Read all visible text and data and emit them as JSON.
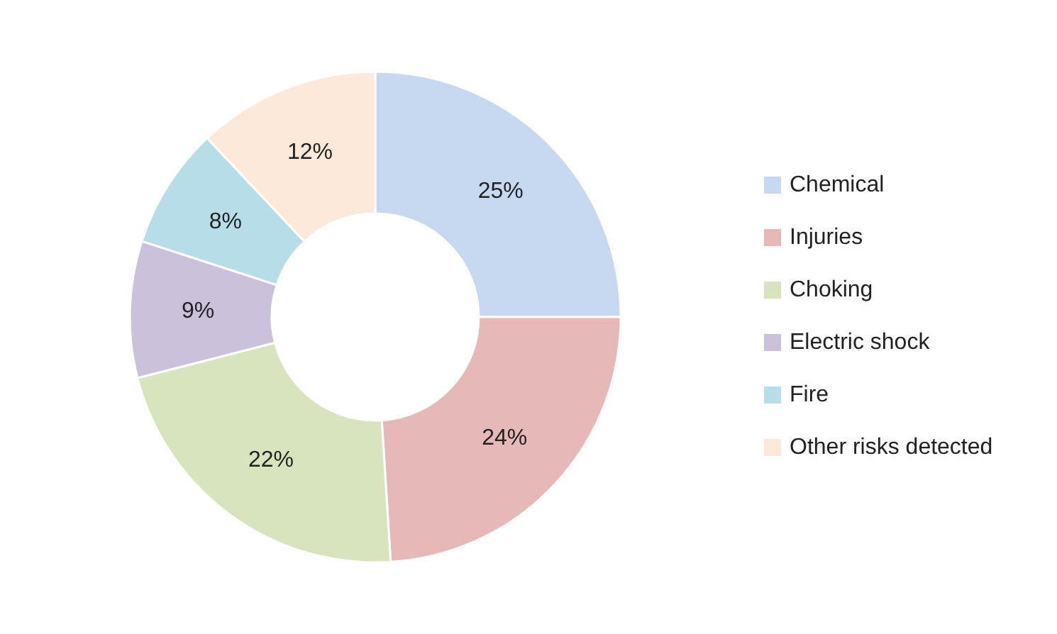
{
  "chart_data": {
    "type": "donut",
    "categories": [
      "Chemical",
      "Injuries",
      "Choking",
      "Electric shock",
      "Fire",
      "Other risks detected"
    ],
    "values": [
      25,
      24,
      22,
      9,
      8,
      12
    ],
    "colors": [
      "#c6d9f1",
      "#e6b9b8",
      "#d7e4bd",
      "#ccc1da",
      "#b7dee8",
      "#fde9d9"
    ],
    "value_labels": [
      "25%",
      "24%",
      "22%",
      "9%",
      "8%",
      "12%"
    ],
    "legend": "right"
  }
}
